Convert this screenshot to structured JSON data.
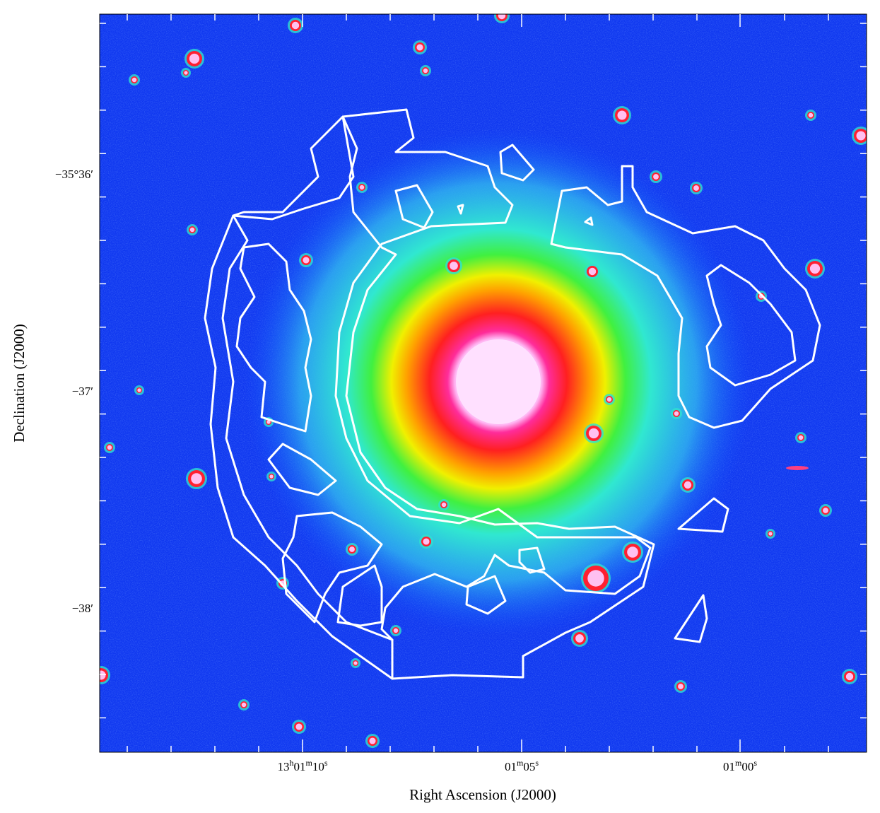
{
  "figure": {
    "x_label": "Right Ascension (J2000)",
    "y_label": "Declination (J2000)",
    "x_ticks": [
      [
        "13",
        "h",
        "01",
        "m",
        "10",
        "s"
      ],
      [
        "01",
        "m",
        "05",
        "s"
      ],
      [
        "01",
        "m",
        "00",
        "s"
      ]
    ],
    "y_ticks": [
      "−35°36′",
      "−37′",
      "−38′"
    ]
  }
}
